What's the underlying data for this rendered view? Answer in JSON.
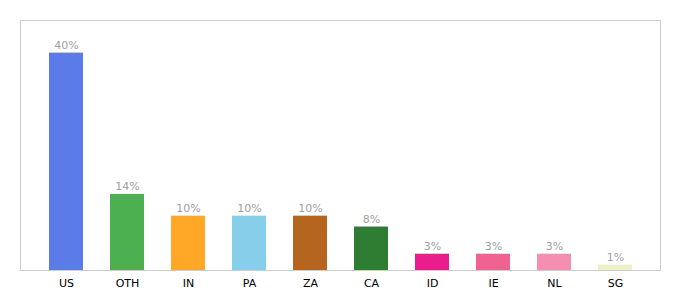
{
  "chart_data": {
    "type": "bar",
    "categories": [
      "US",
      "OTH",
      "IN",
      "PA",
      "ZA",
      "CA",
      "ID",
      "IE",
      "NL",
      "SG"
    ],
    "values": [
      40,
      14,
      10,
      10,
      10,
      8,
      3,
      3,
      3,
      1
    ],
    "value_labels": [
      "40%",
      "14%",
      "10%",
      "10%",
      "10%",
      "8%",
      "3%",
      "3%",
      "3%",
      "1%"
    ],
    "colors": [
      "#5b7be8",
      "#4caf50",
      "#ffa726",
      "#87ceeb",
      "#b5651d",
      "#2e7d32",
      "#e91e8c",
      "#f06292",
      "#f48fb1",
      "#f0f0c8"
    ],
    "ylim": [
      0,
      46
    ],
    "data_labels": true,
    "tick_labels": "x",
    "grid": false
  }
}
